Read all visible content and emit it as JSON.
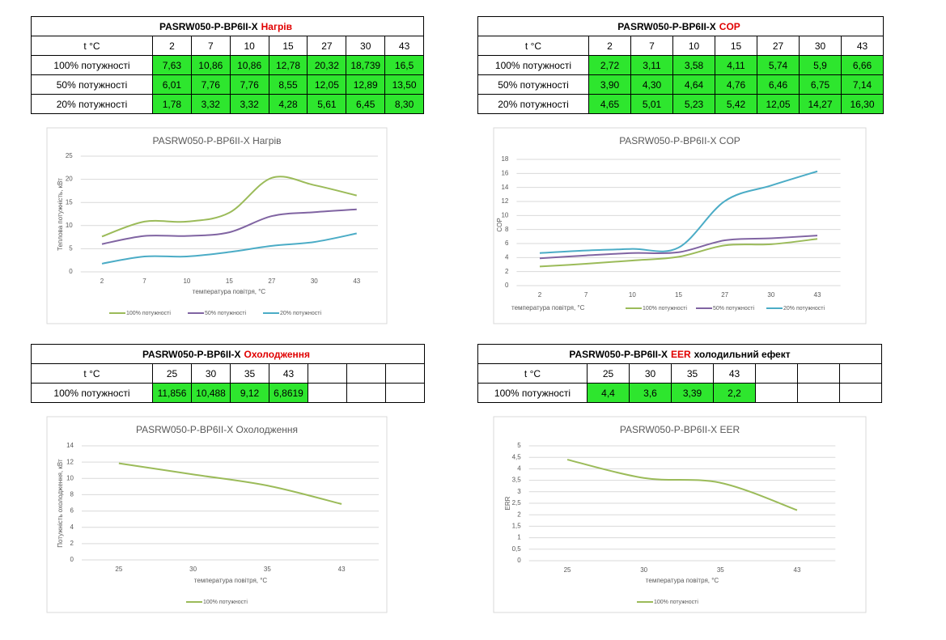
{
  "tables": [
    {
      "title": {
        "prefix": "PASRW050-P-BP6II-X",
        "highlight": "Нагрів"
      },
      "header": [
        "t °C",
        "2",
        "7",
        "10",
        "15",
        "27",
        "30",
        "43"
      ],
      "rows": [
        [
          "100% потужності",
          "7,63",
          "10,86",
          "10,86",
          "12,78",
          "20,32",
          "18,739",
          "16,5"
        ],
        [
          "50% потужності",
          "6,01",
          "7,76",
          "7,76",
          "8,55",
          "12,05",
          "12,89",
          "13,50"
        ],
        [
          "20% потужності",
          "1,78",
          "3,32",
          "3,32",
          "4,28",
          "5,61",
          "6,45",
          "8,30"
        ]
      ]
    },
    {
      "title": {
        "prefix": "PASRW050-P-BP6II-X",
        "highlight": "COP"
      },
      "header": [
        "t °C",
        "2",
        "7",
        "10",
        "15",
        "27",
        "30",
        "43"
      ],
      "rows": [
        [
          "100% потужності",
          "2,72",
          "3,11",
          "3,58",
          "4,11",
          "5,74",
          "5,9",
          "6,66"
        ],
        [
          "50% потужності",
          "3,90",
          "4,30",
          "4,64",
          "4,76",
          "6,46",
          "6,75",
          "7,14"
        ],
        [
          "20% потужності",
          "4,65",
          "5,01",
          "5,23",
          "5,42",
          "12,05",
          "14,27",
          "16,30"
        ]
      ]
    },
    {
      "title": {
        "prefix": "PASRW050-P-BP6II-X",
        "highlight": "Охолодження"
      },
      "header": [
        "t °C",
        "25",
        "30",
        "35",
        "43"
      ],
      "rows": [
        [
          "100% потужності",
          "11,856",
          "10,488",
          "9,12",
          "6,8619"
        ]
      ]
    },
    {
      "title": {
        "prefix": "PASRW050-P-BP6II-X",
        "highlight": "EER",
        "suffix": "холодильний ефект"
      },
      "header": [
        "t °C",
        "25",
        "30",
        "35",
        "43"
      ],
      "rows": [
        [
          "100% потужності",
          "4,4",
          "3,6",
          "3,39",
          "2,2"
        ]
      ]
    }
  ],
  "chart_data": [
    {
      "type": "line",
      "title": "PASRW050-P-BP6II-X Нагрів",
      "x_label": "температура повітря, °C",
      "y_label": "Теплова потужність, кВт",
      "categories": [
        "2",
        "7",
        "10",
        "15",
        "27",
        "30",
        "43"
      ],
      "series": [
        {
          "name": "100% потужності",
          "color": "#9bbb59",
          "values": [
            7.63,
            10.86,
            10.86,
            12.78,
            20.32,
            18.739,
            16.5
          ]
        },
        {
          "name": "50% потужності",
          "color": "#8064a2",
          "values": [
            6.01,
            7.76,
            7.76,
            8.55,
            12.05,
            12.89,
            13.5
          ]
        },
        {
          "name": "20% потужності",
          "color": "#4bacc6",
          "values": [
            1.78,
            3.32,
            3.32,
            4.28,
            5.61,
            6.45,
            8.3
          ]
        }
      ],
      "ylim": [
        0,
        25
      ],
      "yticks": [
        0,
        5,
        10,
        15,
        20,
        25
      ],
      "grid": true
    },
    {
      "type": "line",
      "title": "PASRW050-P-BP6II-X COP",
      "x_label": "температура повітря, °C",
      "y_label": "COP",
      "categories": [
        "2",
        "7",
        "10",
        "15",
        "27",
        "30",
        "43"
      ],
      "series": [
        {
          "name": "100% потужності",
          "color": "#9bbb59",
          "values": [
            2.72,
            3.11,
            3.58,
            4.11,
            5.74,
            5.9,
            6.66
          ]
        },
        {
          "name": "50% потужності",
          "color": "#8064a2",
          "values": [
            3.9,
            4.3,
            4.64,
            4.76,
            6.46,
            6.75,
            7.14
          ]
        },
        {
          "name": "20% потужності",
          "color": "#4bacc6",
          "values": [
            4.65,
            5.01,
            5.23,
            5.42,
            12.05,
            14.27,
            16.3
          ]
        }
      ],
      "ylim": [
        0,
        18
      ],
      "yticks": [
        0,
        2,
        4,
        6,
        8,
        10,
        12,
        14,
        16,
        18
      ],
      "grid": true
    },
    {
      "type": "line",
      "title": "PASRW050-P-BP6II-X Охолодження",
      "x_label": "температура повітря, °C",
      "y_label": "Потужність охолодження, кВт",
      "categories": [
        "25",
        "30",
        "35",
        "43"
      ],
      "series": [
        {
          "name": "100% потужності",
          "color": "#9bbb59",
          "values": [
            11.856,
            10.488,
            9.12,
            6.8619
          ]
        }
      ],
      "ylim": [
        0,
        14
      ],
      "yticks": [
        0,
        2,
        4,
        6,
        8,
        10,
        12,
        14
      ],
      "grid": true
    },
    {
      "type": "line",
      "title": "PASRW050-P-BP6II-X EER",
      "x_label": "температура повітря, °C",
      "y_label": "ERR",
      "categories": [
        "25",
        "30",
        "35",
        "43"
      ],
      "series": [
        {
          "name": "100% потужності",
          "color": "#9bbb59",
          "values": [
            4.4,
            3.6,
            3.39,
            2.2
          ]
        }
      ],
      "ylim": [
        0,
        5
      ],
      "yticks": [
        0,
        {
          "value": 0.5,
          "label": "0,5"
        },
        1,
        {
          "value": 1.5,
          "label": "1,5"
        },
        2,
        {
          "value": 2.5,
          "label": "2,5"
        },
        3,
        {
          "value": 3.5,
          "label": "3,5"
        },
        4,
        {
          "value": 4.5,
          "label": "4,5"
        },
        5
      ],
      "grid": true
    }
  ]
}
